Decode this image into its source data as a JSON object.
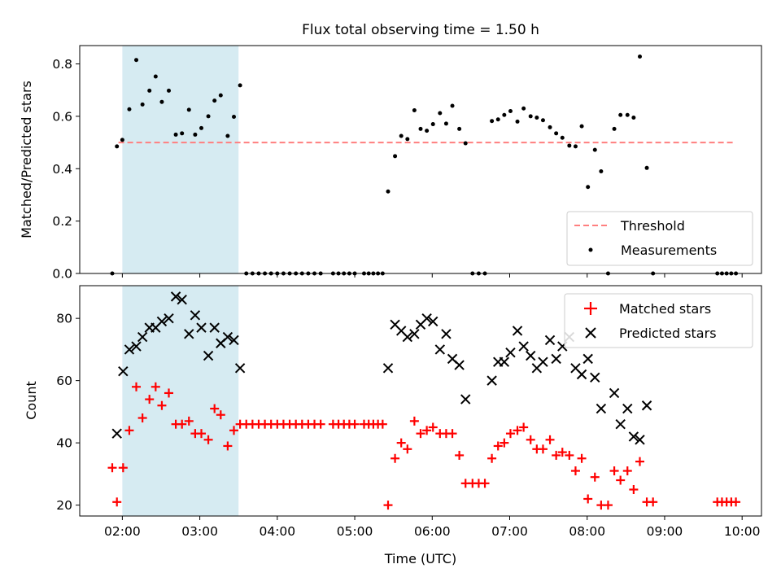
{
  "chart_data": [
    {
      "type": "scatter",
      "title": "Flux total observing time = 1.50 h",
      "xlabel": "",
      "ylabel": "Matched/Predicted stars",
      "xlim": [
        1.45,
        10.25
      ],
      "ylim": [
        0,
        0.87
      ],
      "yticks": [
        0.0,
        0.2,
        0.4,
        0.6,
        0.8
      ],
      "ytick_labels": [
        "0.0",
        "0.2",
        "0.4",
        "0.6",
        "0.8"
      ],
      "highlight_span": [
        2.0,
        3.5
      ],
      "threshold": {
        "name": "Threshold",
        "value": 0.5,
        "x_range": [
          1.95,
          9.9
        ],
        "color": "#ff7f7f"
      },
      "legend": {
        "location": "lower right",
        "entries": [
          "Threshold",
          "Measurements"
        ]
      },
      "series": [
        {
          "name": "Measurements",
          "marker": "dot",
          "color": "#000000",
          "points": [
            [
              1.87,
              0.0
            ],
            [
              1.93,
              0.485
            ],
            [
              2.0,
              0.51
            ],
            [
              2.09,
              0.627
            ],
            [
              2.18,
              0.815
            ],
            [
              2.26,
              0.645
            ],
            [
              2.35,
              0.698
            ],
            [
              2.43,
              0.752
            ],
            [
              2.51,
              0.655
            ],
            [
              2.6,
              0.698
            ],
            [
              2.69,
              0.53
            ],
            [
              2.77,
              0.535
            ],
            [
              2.86,
              0.625
            ],
            [
              2.94,
              0.53
            ],
            [
              3.02,
              0.555
            ],
            [
              3.11,
              0.6
            ],
            [
              3.19,
              0.66
            ],
            [
              3.27,
              0.68
            ],
            [
              3.36,
              0.525
            ],
            [
              3.44,
              0.598
            ],
            [
              3.52,
              0.718
            ],
            [
              3.6,
              0.0
            ],
            [
              3.68,
              0.0
            ],
            [
              3.76,
              0.0
            ],
            [
              3.84,
              0.0
            ],
            [
              3.92,
              0.0
            ],
            [
              4.0,
              0.0
            ],
            [
              4.08,
              0.0
            ],
            [
              4.16,
              0.0
            ],
            [
              4.24,
              0.0
            ],
            [
              4.32,
              0.0
            ],
            [
              4.4,
              0.0
            ],
            [
              4.48,
              0.0
            ],
            [
              4.56,
              0.0
            ],
            [
              4.72,
              0.0
            ],
            [
              4.79,
              0.0
            ],
            [
              4.86,
              0.0
            ],
            [
              4.93,
              0.0
            ],
            [
              5.0,
              0.0
            ],
            [
              5.12,
              0.0
            ],
            [
              5.18,
              0.0
            ],
            [
              5.24,
              0.0
            ],
            [
              5.3,
              0.0
            ],
            [
              5.36,
              0.0
            ],
            [
              5.43,
              0.313
            ],
            [
              5.52,
              0.448
            ],
            [
              5.6,
              0.525
            ],
            [
              5.68,
              0.513
            ],
            [
              5.77,
              0.623
            ],
            [
              5.85,
              0.552
            ],
            [
              5.93,
              0.545
            ],
            [
              6.01,
              0.57
            ],
            [
              6.1,
              0.612
            ],
            [
              6.18,
              0.572
            ],
            [
              6.26,
              0.64
            ],
            [
              6.35,
              0.552
            ],
            [
              6.43,
              0.497
            ],
            [
              6.52,
              0.0
            ],
            [
              6.6,
              0.0
            ],
            [
              6.68,
              0.0
            ],
            [
              6.77,
              0.582
            ],
            [
              6.85,
              0.588
            ],
            [
              6.93,
              0.605
            ],
            [
              7.01,
              0.62
            ],
            [
              7.1,
              0.58
            ],
            [
              7.18,
              0.63
            ],
            [
              7.27,
              0.6
            ],
            [
              7.35,
              0.595
            ],
            [
              7.43,
              0.585
            ],
            [
              7.52,
              0.558
            ],
            [
              7.6,
              0.535
            ],
            [
              7.68,
              0.518
            ],
            [
              7.77,
              0.488
            ],
            [
              7.85,
              0.485
            ],
            [
              7.93,
              0.562
            ],
            [
              8.01,
              0.33
            ],
            [
              8.1,
              0.472
            ],
            [
              8.18,
              0.39
            ],
            [
              8.27,
              0.0
            ],
            [
              8.35,
              0.552
            ],
            [
              8.43,
              0.605
            ],
            [
              8.52,
              0.605
            ],
            [
              8.6,
              0.595
            ],
            [
              8.68,
              0.828
            ],
            [
              8.77,
              0.403
            ],
            [
              8.85,
              0.0
            ],
            [
              9.68,
              0.0
            ],
            [
              9.74,
              0.0
            ],
            [
              9.8,
              0.0
            ],
            [
              9.86,
              0.0
            ],
            [
              9.92,
              0.0
            ]
          ]
        }
      ]
    },
    {
      "type": "scatter",
      "title": "",
      "xlabel": "Time (UTC)",
      "ylabel": "Count",
      "xlim": [
        1.45,
        10.25
      ],
      "ylim": [
        16.5,
        90.5
      ],
      "yticks": [
        20,
        40,
        60,
        80
      ],
      "ytick_labels": [
        "20",
        "40",
        "60",
        "80"
      ],
      "xticks": [
        2,
        3,
        4,
        5,
        6,
        7,
        8,
        9,
        10
      ],
      "xtick_labels": [
        "02:00",
        "03:00",
        "04:00",
        "05:00",
        "06:00",
        "07:00",
        "08:00",
        "09:00",
        "10:00"
      ],
      "highlight_span": [
        2.0,
        3.5
      ],
      "legend": {
        "location": "upper right",
        "entries": [
          "Matched stars",
          "Predicted stars"
        ]
      },
      "series": [
        {
          "name": "Matched stars",
          "marker": "plus",
          "color": "#ff0000",
          "points": [
            [
              1.87,
              32
            ],
            [
              1.93,
              21
            ],
            [
              2.01,
              32
            ],
            [
              2.09,
              44
            ],
            [
              2.18,
              58
            ],
            [
              2.26,
              48
            ],
            [
              2.35,
              54
            ],
            [
              2.43,
              58
            ],
            [
              2.51,
              52
            ],
            [
              2.6,
              56
            ],
            [
              2.69,
              46
            ],
            [
              2.77,
              46
            ],
            [
              2.86,
              47
            ],
            [
              2.94,
              43
            ],
            [
              3.02,
              43
            ],
            [
              3.11,
              41
            ],
            [
              3.19,
              51
            ],
            [
              3.27,
              49
            ],
            [
              3.36,
              39
            ],
            [
              3.44,
              44
            ],
            [
              3.52,
              46
            ],
            [
              3.6,
              46
            ],
            [
              3.68,
              46
            ],
            [
              3.76,
              46
            ],
            [
              3.84,
              46
            ],
            [
              3.92,
              46
            ],
            [
              4.0,
              46
            ],
            [
              4.08,
              46
            ],
            [
              4.16,
              46
            ],
            [
              4.24,
              46
            ],
            [
              4.32,
              46
            ],
            [
              4.4,
              46
            ],
            [
              4.48,
              46
            ],
            [
              4.56,
              46
            ],
            [
              4.72,
              46
            ],
            [
              4.79,
              46
            ],
            [
              4.86,
              46
            ],
            [
              4.93,
              46
            ],
            [
              5.0,
              46
            ],
            [
              5.12,
              46
            ],
            [
              5.18,
              46
            ],
            [
              5.24,
              46
            ],
            [
              5.3,
              46
            ],
            [
              5.36,
              46
            ],
            [
              5.43,
              20
            ],
            [
              5.52,
              35
            ],
            [
              5.6,
              40
            ],
            [
              5.68,
              38
            ],
            [
              5.77,
              47
            ],
            [
              5.85,
              43
            ],
            [
              5.93,
              44
            ],
            [
              6.01,
              45
            ],
            [
              6.1,
              43
            ],
            [
              6.18,
              43
            ],
            [
              6.26,
              43
            ],
            [
              6.35,
              36
            ],
            [
              6.43,
              27
            ],
            [
              6.52,
              27
            ],
            [
              6.6,
              27
            ],
            [
              6.68,
              27
            ],
            [
              6.77,
              35
            ],
            [
              6.85,
              39
            ],
            [
              6.93,
              40
            ],
            [
              7.01,
              43
            ],
            [
              7.1,
              44
            ],
            [
              7.18,
              45
            ],
            [
              7.27,
              41
            ],
            [
              7.35,
              38
            ],
            [
              7.43,
              38
            ],
            [
              7.52,
              41
            ],
            [
              7.6,
              36
            ],
            [
              7.68,
              37
            ],
            [
              7.77,
              36
            ],
            [
              7.85,
              31
            ],
            [
              7.93,
              35
            ],
            [
              8.01,
              22
            ],
            [
              8.1,
              29
            ],
            [
              8.18,
              20
            ],
            [
              8.27,
              20
            ],
            [
              8.35,
              31
            ],
            [
              8.43,
              28
            ],
            [
              8.52,
              31
            ],
            [
              8.6,
              25
            ],
            [
              8.68,
              34
            ],
            [
              8.77,
              21
            ],
            [
              8.85,
              21
            ],
            [
              9.68,
              21
            ],
            [
              9.74,
              21
            ],
            [
              9.8,
              21
            ],
            [
              9.86,
              21
            ],
            [
              9.92,
              21
            ]
          ]
        },
        {
          "name": "Predicted stars",
          "marker": "x",
          "color": "#000000",
          "points": [
            [
              1.93,
              43
            ],
            [
              2.01,
              63
            ],
            [
              2.09,
              70
            ],
            [
              2.18,
              71
            ],
            [
              2.26,
              74
            ],
            [
              2.35,
              77
            ],
            [
              2.43,
              77
            ],
            [
              2.51,
              79
            ],
            [
              2.6,
              80
            ],
            [
              2.69,
              87
            ],
            [
              2.77,
              86
            ],
            [
              2.86,
              75
            ],
            [
              2.94,
              81
            ],
            [
              3.02,
              77
            ],
            [
              3.11,
              68
            ],
            [
              3.19,
              77
            ],
            [
              3.27,
              72
            ],
            [
              3.36,
              74
            ],
            [
              3.44,
              73
            ],
            [
              3.52,
              64
            ],
            [
              5.43,
              64
            ],
            [
              5.52,
              78
            ],
            [
              5.6,
              76
            ],
            [
              5.68,
              74
            ],
            [
              5.77,
              75
            ],
            [
              5.85,
              78
            ],
            [
              5.93,
              80
            ],
            [
              6.01,
              79
            ],
            [
              6.1,
              70
            ],
            [
              6.18,
              75
            ],
            [
              6.26,
              67
            ],
            [
              6.35,
              65
            ],
            [
              6.43,
              54
            ],
            [
              6.77,
              60
            ],
            [
              6.85,
              66
            ],
            [
              6.93,
              66
            ],
            [
              7.01,
              69
            ],
            [
              7.1,
              76
            ],
            [
              7.18,
              71
            ],
            [
              7.27,
              68
            ],
            [
              7.35,
              64
            ],
            [
              7.43,
              66
            ],
            [
              7.52,
              73
            ],
            [
              7.6,
              67
            ],
            [
              7.68,
              71
            ],
            [
              7.77,
              74
            ],
            [
              7.85,
              64
            ],
            [
              7.93,
              62
            ],
            [
              8.01,
              67
            ],
            [
              8.1,
              61
            ],
            [
              8.18,
              51
            ],
            [
              8.35,
              56
            ],
            [
              8.43,
              46
            ],
            [
              8.52,
              51
            ],
            [
              8.6,
              42
            ],
            [
              8.68,
              41
            ],
            [
              8.77,
              52
            ]
          ]
        }
      ]
    }
  ]
}
